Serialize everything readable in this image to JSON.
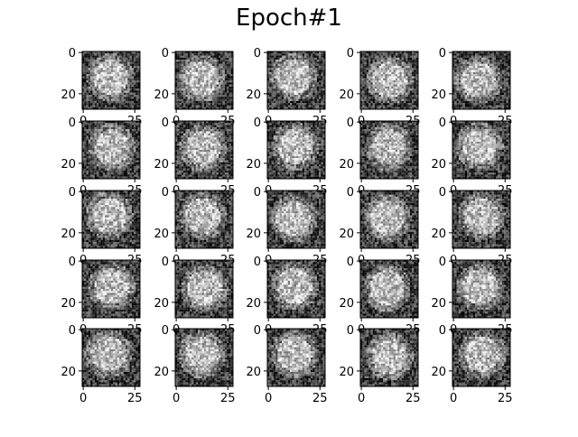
{
  "figure": {
    "title": "Epoch#1",
    "rows": 5,
    "cols": 5,
    "image_size": 28,
    "colormap": "gray",
    "y_tick_labels": [
      "0",
      "20"
    ],
    "x_tick_labels": [
      "0",
      "25"
    ],
    "colors": {
      "background": "#ffffff",
      "axis": "#000000",
      "text": "#000000"
    }
  }
}
